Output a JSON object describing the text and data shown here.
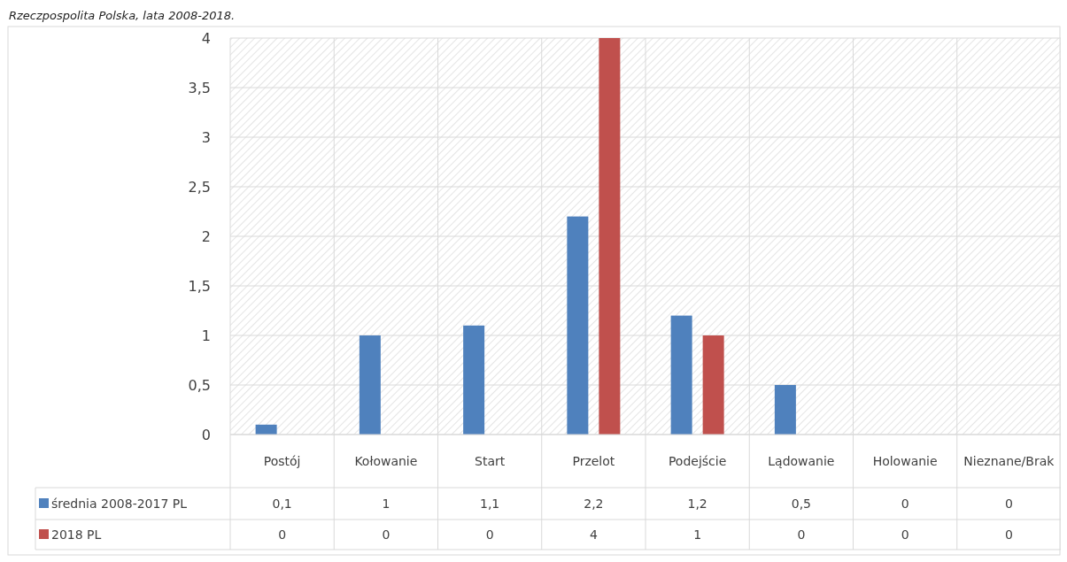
{
  "chart_data": {
    "type": "bar",
    "title": "Rzeczpospolita Polska, lata 2008-2018.",
    "categories": [
      "Postój",
      "Kołowanie",
      "Start",
      "Przelot",
      "Podejście",
      "Lądowanie",
      "Holowanie",
      "Nieznane/Brak"
    ],
    "series": [
      {
        "name": "średnia 2008-2017 PL",
        "color": "#4f81bd",
        "values": [
          0.1,
          1,
          1.1,
          2.2,
          1.2,
          0.5,
          0,
          0
        ],
        "value_labels": [
          "0,1",
          "1",
          "1,1",
          "2,2",
          "1,2",
          "0,5",
          "0",
          "0"
        ]
      },
      {
        "name": "2018 PL",
        "color": "#c0504d",
        "values": [
          0,
          0,
          0,
          4,
          1,
          0,
          0,
          0
        ],
        "value_labels": [
          "0",
          "0",
          "0",
          "4",
          "1",
          "0",
          "0",
          "0"
        ]
      }
    ],
    "ylim": [
      0,
      4
    ],
    "yticks": [
      0,
      {
        "value": 0.5,
        "label": "0,5"
      },
      1,
      {
        "value": 1.5,
        "label": "1,5"
      },
      2,
      {
        "value": 2.5,
        "label": "2,5"
      },
      3,
      {
        "value": 3.5,
        "label": "3,5"
      },
      4
    ],
    "grid": true,
    "legend": "bottom"
  }
}
